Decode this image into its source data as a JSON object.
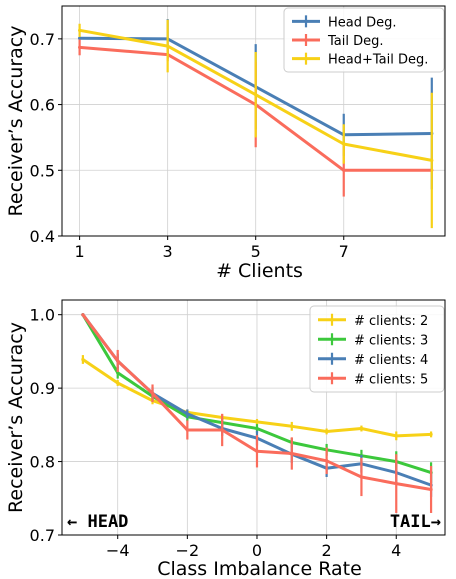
{
  "chart_data": [
    {
      "type": "line",
      "x": [
        1,
        3,
        5,
        7,
        9
      ],
      "xticks": [
        1,
        3,
        5,
        7
      ],
      "xlabel": "# Clients",
      "ylabel": "Receiver’s Accuracy",
      "xlim": [
        0.6,
        9.3
      ],
      "ylim": [
        0.4,
        0.75
      ],
      "yticks": [
        0.4,
        0.5,
        0.6,
        0.7
      ],
      "ytick_labels": [
        "0.4",
        "0.5",
        "0.6",
        "0.7"
      ],
      "grid": true,
      "legend_position": "top-right",
      "series": [
        {
          "name": "Head Deg.",
          "color": "#4a7fb5",
          "values": [
            0.701,
            0.7,
            0.627,
            0.554,
            0.556
          ],
          "errors": [
            0.0,
            0.03,
            0.065,
            0.032,
            0.085
          ]
        },
        {
          "name": "Tail Deg.",
          "color": "#fa6c5c",
          "values": [
            0.687,
            0.676,
            0.6,
            0.5,
            0.5
          ],
          "errors": [
            0.012,
            0.01,
            0.065,
            0.04,
            0.0
          ]
        },
        {
          "name": "Head+Tail Deg.",
          "color": "#f7d117",
          "values": [
            0.713,
            0.689,
            0.615,
            0.54,
            0.515
          ],
          "errors": [
            0.01,
            0.04,
            0.065,
            0.03,
            0.103
          ]
        }
      ]
    },
    {
      "type": "line",
      "x": [
        -5,
        -4,
        -3,
        -2,
        -1,
        0,
        1,
        2,
        3,
        4,
        5
      ],
      "xticks": [
        -4,
        -2,
        0,
        2,
        4
      ],
      "xtick_labels": [
        "−4",
        "−2",
        "0",
        "2",
        "4"
      ],
      "xlabel": "Class Imbalance Rate",
      "ylabel": "Receiver’s Accuracy",
      "xlim": [
        -5.6,
        5.4
      ],
      "ylim": [
        0.7,
        1.02
      ],
      "yticks": [
        0.7,
        0.8,
        0.9,
        1.0
      ],
      "ytick_labels": [
        "0.7",
        "0.8",
        "0.9",
        "1.0"
      ],
      "grid": true,
      "legend_position": "top-right",
      "annotations": {
        "left": "← HEAD",
        "right": "TAIL→"
      },
      "series": [
        {
          "name": "# clients: 2",
          "color": "#f7d117",
          "values": [
            0.939,
            0.907,
            0.883,
            0.867,
            0.86,
            0.854,
            0.848,
            0.841,
            0.845,
            0.835,
            0.837
          ],
          "errors": [
            0.006,
            0.004,
            0.005,
            0.004,
            0.004,
            0.004,
            0.006,
            0.004,
            0.004,
            0.006,
            0.004
          ]
        },
        {
          "name": "# clients: 3",
          "color": "#3cc83c",
          "values": [
            1.0,
            0.921,
            0.889,
            0.861,
            0.853,
            0.845,
            0.826,
            0.816,
            0.808,
            0.8,
            0.785
          ],
          "errors": [
            0.0,
            0.008,
            0.006,
            0.006,
            0.006,
            0.006,
            0.006,
            0.008,
            0.008,
            0.014,
            0.014
          ]
        },
        {
          "name": "# clients: 4",
          "color": "#4a7fb5",
          "values": [
            1.0,
            0.937,
            0.893,
            0.865,
            0.845,
            0.832,
            0.81,
            0.791,
            0.797,
            0.785,
            0.768
          ],
          "errors": [
            0.0,
            0.01,
            0.008,
            0.006,
            0.01,
            0.01,
            0.012,
            0.012,
            0.012,
            0.014,
            0.016
          ]
        },
        {
          "name": "# clients: 5",
          "color": "#fa6c5c",
          "values": [
            1.0,
            0.937,
            0.893,
            0.843,
            0.843,
            0.814,
            0.811,
            0.801,
            0.779,
            0.77,
            0.762
          ],
          "errors": [
            0.0,
            0.015,
            0.012,
            0.013,
            0.022,
            0.022,
            0.022,
            0.018,
            0.026,
            0.04,
            0.032
          ]
        }
      ]
    }
  ]
}
